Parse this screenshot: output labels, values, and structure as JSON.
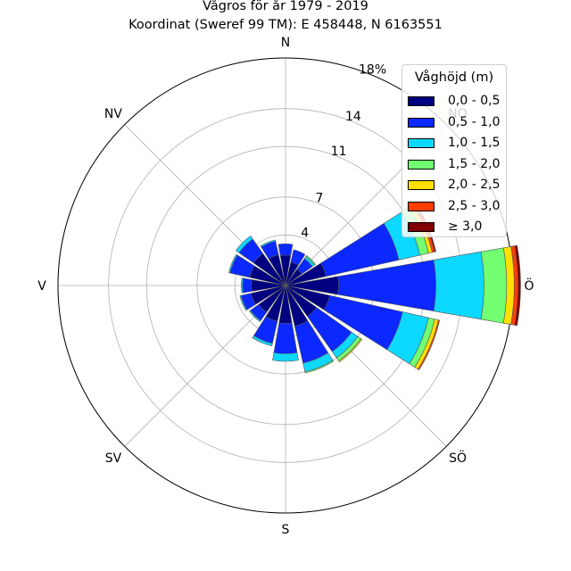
{
  "title": "Vågros för år 1979 - 2019",
  "subtitle": "Koordinat (Sweref 99 TM): E 458448, N 6163551",
  "chart_data": {
    "type": "windrose",
    "title": "Vågros för år 1979 - 2019",
    "subtitle": "Koordinat (Sweref 99 TM): E 458448, N 6163551",
    "r_max": 18,
    "r_ticks": [
      4,
      7,
      11,
      14,
      18
    ],
    "r_tick_labels": [
      "4",
      "7",
      "11",
      "14",
      "18%"
    ],
    "r_unit": "%",
    "grid": true,
    "direction_labels": [
      "N",
      "NO",
      "Ö",
      "SÖ",
      "S",
      "SV",
      "V",
      "NV"
    ],
    "direction_angles_deg": [
      0,
      45,
      90,
      135,
      180,
      225,
      270,
      315
    ],
    "legend_title": "Våghöjd (m)",
    "legend_position": "top-right",
    "bins": [
      {
        "label": "0,0 - 0,5",
        "color": "#000080"
      },
      {
        "label": "0,5 - 1,0",
        "color": "#0a28ff"
      },
      {
        "label": "1,0 - 1,5",
        "color": "#0dd8ff"
      },
      {
        "label": "1,5 - 2,0",
        "color": "#72ff72"
      },
      {
        "label": "2,0 - 2,5",
        "color": "#ffe000"
      },
      {
        "label": "2,5 - 3,0",
        "color": "#ff3e00"
      },
      {
        "label": "≥ 3,0",
        "color": "#800000"
      }
    ],
    "sectors": [
      {
        "dir_deg": 0.0,
        "values": [
          2.4,
          0.9,
          0,
          0,
          0,
          0,
          0
        ]
      },
      {
        "dir_deg": 22.5,
        "values": [
          1.9,
          1.0,
          0,
          0,
          0,
          0,
          0
        ]
      },
      {
        "dir_deg": 45.0,
        "values": [
          1.6,
          1.0,
          0.2,
          0.1,
          0,
          0,
          0
        ]
      },
      {
        "dir_deg": 67.5,
        "values": [
          3.3,
          5.9,
          1.7,
          0.7,
          0.3,
          0.2,
          0.1
        ]
      },
      {
        "dir_deg": 90.0,
        "values": [
          4.2,
          7.7,
          3.8,
          1.8,
          0.6,
          0.3,
          0.2
        ]
      },
      {
        "dir_deg": 112.5,
        "values": [
          3.6,
          5.9,
          2.1,
          0.5,
          0.3,
          0.1,
          0
        ]
      },
      {
        "dir_deg": 135.0,
        "values": [
          3.0,
          3.4,
          0.6,
          0.3,
          0.1,
          0,
          0
        ]
      },
      {
        "dir_deg": 157.5,
        "values": [
          3.3,
          3.0,
          0.7,
          0.1,
          0,
          0,
          0
        ]
      },
      {
        "dir_deg": 180.0,
        "values": [
          3.0,
          2.4,
          0.6,
          0,
          0,
          0,
          0
        ]
      },
      {
        "dir_deg": 202.5,
        "values": [
          2.9,
          1.8,
          0.2,
          0,
          0,
          0,
          0
        ]
      },
      {
        "dir_deg": 225.0,
        "values": [
          2.6,
          0.8,
          0.1,
          0,
          0,
          0,
          0
        ]
      },
      {
        "dir_deg": 247.5,
        "values": [
          2.8,
          0.8,
          0.1,
          0,
          0,
          0,
          0
        ]
      },
      {
        "dir_deg": 270.0,
        "values": [
          2.7,
          0.7,
          0.1,
          0,
          0,
          0,
          0
        ]
      },
      {
        "dir_deg": 292.5,
        "values": [
          2.9,
          1.6,
          0.1,
          0,
          0,
          0,
          0
        ]
      },
      {
        "dir_deg": 315.0,
        "values": [
          3.1,
          1.4,
          0.3,
          0,
          0,
          0,
          0
        ]
      },
      {
        "dir_deg": 337.5,
        "values": [
          2.5,
          1.1,
          0.1,
          0,
          0,
          0,
          0
        ]
      }
    ]
  }
}
